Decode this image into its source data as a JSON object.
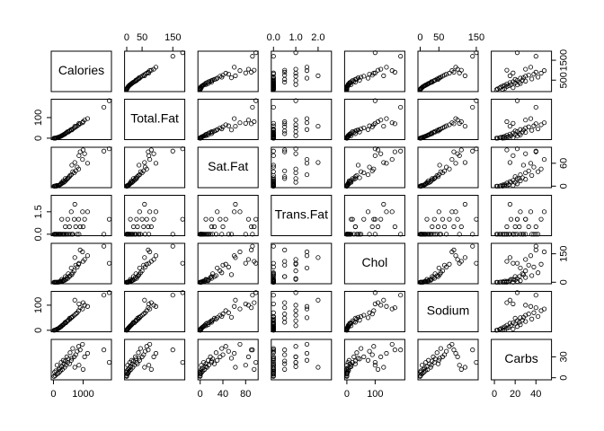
{
  "chart_data": {
    "type": "pairs",
    "point_color": "#000000",
    "variables": [
      {
        "name": "Calories",
        "lim": [
          -75,
          1955
        ],
        "xticks": [
          0,
          1000
        ],
        "yticks": [
          500,
          1500
        ],
        "values": [
          1880,
          1150,
          1050,
          980,
          900,
          850,
          800,
          750,
          700,
          650,
          620,
          600,
          560,
          540,
          500,
          480,
          450,
          420,
          400,
          380,
          350,
          330,
          300,
          280,
          260,
          240,
          220,
          200,
          180,
          150,
          120,
          100,
          80,
          60,
          40,
          20,
          720,
          1000,
          860,
          1700
        ]
      },
      {
        "name": "Total.Fat",
        "lim": [
          -7,
          189
        ],
        "xticks": [
          0,
          50,
          150
        ],
        "yticks": [
          0,
          100
        ],
        "values": [
          182,
          95,
          88,
          75,
          70,
          65,
          60,
          55,
          50,
          45,
          40,
          42,
          38,
          35,
          30,
          32,
          28,
          25,
          22,
          20,
          18,
          16,
          14,
          12,
          10,
          9,
          8,
          6,
          5,
          4,
          3,
          2,
          1,
          0,
          0,
          0,
          58,
          80,
          72,
          150
        ]
      },
      {
        "name": "Sat.Fat",
        "lim": [
          -4,
          102
        ],
        "xticks": [
          0,
          40,
          80
        ],
        "yticks": [
          0,
          60
        ],
        "values": [
          98,
          60,
          85,
          70,
          90,
          45,
          50,
          40,
          35,
          38,
          55,
          30,
          28,
          25,
          22,
          20,
          18,
          15,
          20,
          12,
          10,
          14,
          8,
          10,
          6,
          5,
          4,
          3,
          2,
          1,
          2,
          0,
          1,
          0,
          0,
          0,
          62,
          95,
          80,
          92
        ]
      },
      {
        "name": "Trans.Fat",
        "lim": [
          -0.1,
          2.6
        ],
        "xticks": [
          {
            "value": 0,
            "label": "0.0"
          },
          {
            "value": 1,
            "label": "1.0"
          },
          {
            "value": 2,
            "label": "2.0"
          }
        ],
        "yticks": [
          {
            "value": 0,
            "label": "0.0"
          },
          {
            "value": 1.5,
            "label": "1.5"
          }
        ],
        "values": [
          1,
          1.5,
          1,
          1.5,
          0.5,
          1,
          0,
          0.5,
          1,
          0,
          0,
          1.5,
          0,
          0.5,
          0,
          1,
          0,
          0,
          0.5,
          0,
          0,
          0,
          0,
          1,
          0,
          0,
          0,
          0,
          0,
          0,
          0,
          0,
          0,
          0,
          0,
          0,
          2,
          0.5,
          0,
          0
        ]
      },
      {
        "name": "Chol",
        "lim": [
          -8,
          205
        ],
        "xticks": [
          0,
          100
        ],
        "yticks": [
          0,
          150
        ],
        "values": [
          100,
          140,
          120,
          160,
          170,
          95,
          80,
          90,
          60,
          50,
          40,
          75,
          35,
          30,
          45,
          20,
          25,
          15,
          30,
          10,
          12,
          8,
          5,
          15,
          4,
          6,
          3,
          2,
          0,
          1,
          0,
          0,
          0,
          0,
          0,
          0,
          130,
          110,
          100,
          190
        ]
      },
      {
        "name": "Sodium",
        "lim": [
          -6,
          155
        ],
        "xticks": [
          0,
          50,
          150
        ],
        "yticks": [
          0,
          100
        ],
        "values": [
          150,
          95,
          100,
          85,
          90,
          78,
          70,
          65,
          60,
          55,
          52,
          50,
          45,
          48,
          40,
          38,
          35,
          30,
          32,
          28,
          25,
          22,
          20,
          18,
          15,
          14,
          12,
          10,
          8,
          6,
          5,
          3,
          2,
          1,
          1,
          0,
          120,
          110,
          105,
          140
        ]
      },
      {
        "name": "Carbs",
        "lim": [
          -3,
          55
        ],
        "xticks": [
          0,
          20,
          40
        ],
        "yticks": [
          0,
          30
        ],
        "values": [
          22,
          35,
          30,
          48,
          40,
          45,
          38,
          33,
          30,
          42,
          28,
          25,
          36,
          20,
          27,
          22,
          30,
          18,
          24,
          15,
          20,
          25,
          12,
          16,
          22,
          10,
          14,
          8,
          12,
          6,
          18,
          5,
          10,
          3,
          8,
          2,
          15,
          12,
          18,
          40
        ]
      }
    ]
  }
}
